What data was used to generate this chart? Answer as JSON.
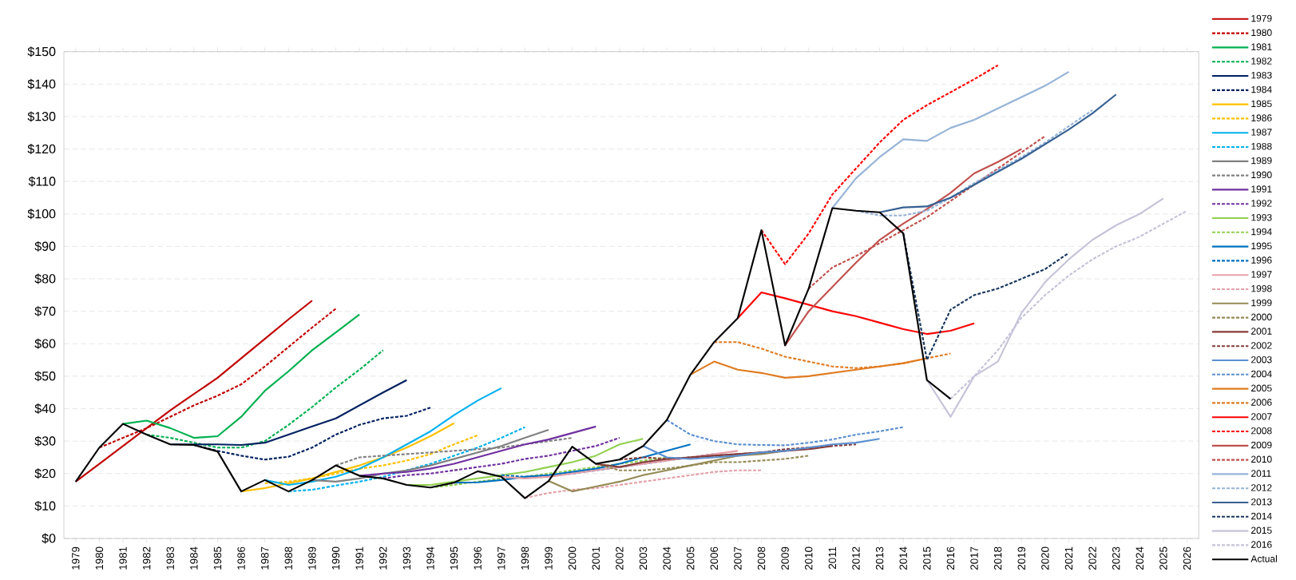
{
  "chart_data": {
    "type": "line",
    "xlim": [
      1978.5,
      2026.5
    ],
    "xticks": [
      1979,
      1980,
      1981,
      1982,
      1983,
      1984,
      1985,
      1986,
      1987,
      1988,
      1989,
      1990,
      1991,
      1992,
      1993,
      1994,
      1995,
      1996,
      1997,
      1998,
      1999,
      2000,
      2001,
      2002,
      2003,
      2004,
      2005,
      2006,
      2007,
      2008,
      2009,
      2010,
      2011,
      2012,
      2013,
      2014,
      2015,
      2016,
      2017,
      2018,
      2019,
      2020,
      2021,
      2022,
      2023,
      2024,
      2025,
      2026
    ],
    "ylim": [
      0,
      150
    ],
    "yticks": [
      {
        "value": 0,
        "label": "$0"
      },
      {
        "value": 10,
        "label": "$10"
      },
      {
        "value": 20,
        "label": "$20"
      },
      {
        "value": 30,
        "label": "$30"
      },
      {
        "value": 40,
        "label": "$40"
      },
      {
        "value": 50,
        "label": "$50"
      },
      {
        "value": 60,
        "label": "$60"
      },
      {
        "value": 70,
        "label": "$70"
      },
      {
        "value": 80,
        "label": "$80"
      },
      {
        "value": 90,
        "label": "$90"
      },
      {
        "value": 100,
        "label": "$100"
      },
      {
        "value": 110,
        "label": "$110"
      },
      {
        "value": 120,
        "label": "$120"
      },
      {
        "value": 130,
        "label": "$130"
      },
      {
        "value": 140,
        "label": "$140"
      },
      {
        "value": 150,
        "label": "$150"
      }
    ],
    "grid": "y",
    "legend": "right",
    "marker": "none",
    "series": [
      {
        "name": "1979",
        "color": "#c00000",
        "line_style": "solid",
        "x": [
          1979,
          1980,
          1981,
          1982,
          1983,
          1984,
          1985,
          1986,
          1987,
          1988,
          1989
        ],
        "values": [
          17.5,
          23,
          28.5,
          34,
          39.5,
          44.5,
          49.5,
          55.5,
          61.5,
          67.5,
          73.3
        ]
      },
      {
        "name": "1980",
        "color": "#c00000",
        "line_style": "dashed",
        "x": [
          1980,
          1981,
          1982,
          1983,
          1984,
          1985,
          1986,
          1987,
          1988,
          1989,
          1990
        ],
        "values": [
          28,
          31,
          34,
          37.5,
          41,
          44,
          47.5,
          53,
          59,
          65,
          70.8
        ]
      },
      {
        "name": "1981",
        "color": "#00b050",
        "line_style": "solid",
        "x": [
          1981,
          1982,
          1983,
          1984,
          1985,
          1986,
          1987,
          1988,
          1989,
          1990,
          1991
        ],
        "values": [
          35.3,
          36.3,
          34,
          31,
          31.5,
          37.5,
          45.5,
          51.5,
          58,
          63.5,
          69
        ]
      },
      {
        "name": "1982",
        "color": "#00b050",
        "line_style": "dashed",
        "x": [
          1982,
          1983,
          1984,
          1985,
          1986,
          1987,
          1988,
          1989,
          1990,
          1991,
          1992
        ],
        "values": [
          32,
          31,
          29.5,
          28,
          28,
          30,
          35,
          40.5,
          46.5,
          52,
          58
        ]
      },
      {
        "name": "1983",
        "color": "#002060",
        "line_style": "solid",
        "x": [
          1983,
          1984,
          1985,
          1986,
          1987,
          1988,
          1989,
          1990,
          1991,
          1992,
          1993
        ],
        "values": [
          29,
          29,
          29,
          28.8,
          29.5,
          32,
          34.5,
          37,
          41,
          45,
          48.8
        ]
      },
      {
        "name": "1984",
        "color": "#002060",
        "line_style": "dashed",
        "x": [
          1984,
          1985,
          1986,
          1987,
          1988,
          1989,
          1990,
          1991,
          1992,
          1993,
          1994
        ],
        "values": [
          28.8,
          27,
          25.5,
          24.3,
          25.2,
          28,
          32,
          35,
          37,
          37.8,
          40.3
        ]
      },
      {
        "name": "1985",
        "color": "#ffc000",
        "line_style": "solid",
        "x": [
          1986,
          1987,
          1988,
          1989,
          1990,
          1991,
          1992,
          1993,
          1994,
          1995
        ],
        "values": [
          14.5,
          15.5,
          17,
          18.5,
          20.5,
          22.5,
          25,
          28,
          31.5,
          35.5
        ]
      },
      {
        "name": "1986",
        "color": "#ffc000",
        "line_style": "dashed",
        "x": [
          1987,
          1988,
          1989,
          1990,
          1991,
          1992,
          1993,
          1994,
          1995,
          1996
        ],
        "values": [
          17,
          17.5,
          18.5,
          20,
          21.5,
          22.5,
          24,
          26,
          29,
          31.8
        ]
      },
      {
        "name": "1987",
        "color": "#00b0f0",
        "line_style": "solid",
        "x": [
          1987,
          1988,
          1989,
          1990,
          1991,
          1992,
          1993,
          1994,
          1995,
          1996,
          1997
        ],
        "values": [
          18,
          16.5,
          17.5,
          19,
          21.5,
          25,
          29,
          33,
          38,
          42.5,
          46.3
        ]
      },
      {
        "name": "1988",
        "color": "#00b0f0",
        "line_style": "dashed",
        "x": [
          1988,
          1989,
          1990,
          1991,
          1992,
          1993,
          1994,
          1995,
          1996,
          1997,
          1998
        ],
        "values": [
          14.5,
          15,
          16.3,
          17.5,
          19,
          21,
          23,
          25.5,
          28,
          31,
          34.3
        ]
      },
      {
        "name": "1989",
        "color": "#808080",
        "line_style": "solid",
        "x": [
          1989,
          1990,
          1991,
          1992,
          1993,
          1994,
          1995,
          1996,
          1997,
          1998,
          1999
        ],
        "values": [
          18,
          17.5,
          18.5,
          20,
          21,
          22.5,
          24.5,
          26.5,
          28.5,
          31,
          33.5
        ]
      },
      {
        "name": "1990",
        "color": "#808080",
        "line_style": "dashed",
        "x": [
          1990,
          1991,
          1992,
          1993,
          1994,
          1995,
          1996,
          1997,
          1998,
          1999,
          2000
        ],
        "values": [
          22.5,
          25,
          25.5,
          26,
          26.5,
          27,
          27.5,
          28,
          29,
          30,
          31
        ]
      },
      {
        "name": "1991",
        "color": "#7030a0",
        "line_style": "solid",
        "x": [
          1991,
          1992,
          1993,
          1994,
          1995,
          1996,
          1997,
          1998,
          1999,
          2000,
          2001
        ],
        "values": [
          19.3,
          20,
          20.5,
          21.5,
          23,
          25,
          27,
          29,
          30.5,
          32.5,
          34.5
        ]
      },
      {
        "name": "1992",
        "color": "#7030a0",
        "line_style": "dashed",
        "x": [
          1992,
          1993,
          1994,
          1995,
          1996,
          1997,
          1998,
          1999,
          2000,
          2001,
          2002
        ],
        "values": [
          18.5,
          19.5,
          20,
          21,
          22,
          23,
          24.5,
          25.5,
          27,
          28.5,
          31
        ]
      },
      {
        "name": "1993",
        "color": "#92d050",
        "line_style": "solid",
        "x": [
          1993,
          1994,
          1995,
          1996,
          1997,
          1998,
          1999,
          2000,
          2001,
          2002,
          2003
        ],
        "values": [
          16.5,
          16.5,
          17.5,
          18.5,
          19.5,
          20.5,
          22,
          23.5,
          25.5,
          29,
          30.7
        ]
      },
      {
        "name": "1994",
        "color": "#92d050",
        "line_style": "dashed",
        "x": [
          1994,
          1995,
          1996,
          1997,
          1998,
          1999,
          2000,
          2001,
          2002,
          2003,
          2004
        ],
        "values": [
          15.7,
          16.5,
          17.5,
          18.5,
          19,
          20,
          21,
          22,
          23,
          24,
          25
        ]
      },
      {
        "name": "1995",
        "color": "#0070c0",
        "line_style": "solid",
        "x": [
          1995,
          1996,
          1997,
          1998,
          1999,
          2000,
          2001,
          2002,
          2003,
          2004,
          2005
        ],
        "values": [
          17.2,
          17.3,
          18,
          19,
          19.5,
          20.5,
          21.5,
          23,
          25,
          27,
          29
        ]
      },
      {
        "name": "1996",
        "color": "#0070c0",
        "line_style": "dashed",
        "x": [
          1997,
          1998,
          1999,
          2000,
          2001,
          2002,
          2003,
          2004,
          2005,
          2006
        ],
        "values": [
          19.5,
          19,
          19.5,
          20,
          21,
          22,
          23,
          24,
          25,
          26
        ]
      },
      {
        "name": "1997",
        "color": "#e6a0a8",
        "line_style": "solid",
        "x": [
          1997,
          1998,
          1999,
          2000,
          2001,
          2002,
          2003,
          2004,
          2005,
          2006,
          2007
        ],
        "values": [
          19,
          18.5,
          19,
          20,
          21,
          22,
          23,
          24,
          25,
          26,
          27
        ]
      },
      {
        "name": "1998",
        "color": "#e6a0a8",
        "line_style": "dashed",
        "x": [
          1998,
          1999,
          2000,
          2001,
          2002,
          2003,
          2004,
          2005,
          2006,
          2007,
          2008
        ],
        "values": [
          12.5,
          14,
          15,
          15.5,
          16.5,
          17.5,
          18.5,
          19.5,
          20.5,
          21,
          21
        ]
      },
      {
        "name": "1999",
        "color": "#948a54",
        "line_style": "solid",
        "x": [
          1999,
          2000,
          2001,
          2002,
          2003,
          2004,
          2005,
          2006,
          2007,
          2008,
          2009
        ],
        "values": [
          17.7,
          14.5,
          16,
          17.5,
          19.5,
          21,
          22.5,
          24,
          25.5,
          26,
          27
        ]
      },
      {
        "name": "2000",
        "color": "#948a54",
        "line_style": "dashed",
        "x": [
          2001,
          2002,
          2003,
          2004,
          2005,
          2006,
          2007,
          2008,
          2009,
          2010
        ],
        "values": [
          23,
          21,
          21,
          21.5,
          22.5,
          23.5,
          23.5,
          24,
          24.5,
          25.5
        ]
      },
      {
        "name": "2001",
        "color": "#843c39",
        "line_style": "solid",
        "x": [
          2001,
          2002,
          2003,
          2004,
          2005,
          2006,
          2007,
          2008,
          2009,
          2010,
          2011
        ],
        "values": [
          23,
          22,
          23.5,
          24.5,
          25,
          25.5,
          26,
          26.5,
          27,
          27.5,
          28.5
        ]
      },
      {
        "name": "2002",
        "color": "#843c39",
        "line_style": "dashed",
        "x": [
          2002,
          2003,
          2004,
          2005,
          2006,
          2007,
          2008,
          2009,
          2010,
          2011,
          2012
        ],
        "values": [
          24.3,
          25,
          24.5,
          25,
          25.5,
          26,
          26.5,
          27.5,
          28,
          28.5,
          29
        ]
      },
      {
        "name": "2003",
        "color": "#5b8fd0",
        "line_style": "solid",
        "x": [
          2003,
          2004,
          2005,
          2006,
          2007,
          2008,
          2009,
          2010,
          2011,
          2012,
          2013
        ],
        "values": [
          28.5,
          25,
          24.5,
          25,
          25.5,
          26.5,
          27,
          28,
          29,
          29.5,
          30.7
        ]
      },
      {
        "name": "2004",
        "color": "#5b8fd0",
        "line_style": "dashed",
        "x": [
          2004,
          2005,
          2006,
          2007,
          2008,
          2009,
          2010,
          2011,
          2012,
          2013,
          2014
        ],
        "values": [
          36.5,
          32,
          30,
          29,
          28.8,
          28.7,
          29.5,
          30.5,
          32,
          33,
          34.3
        ]
      },
      {
        "name": "2005",
        "color": "#e07b20",
        "line_style": "solid",
        "x": [
          2005,
          2006,
          2007,
          2008,
          2009,
          2010,
          2011,
          2012,
          2013,
          2014,
          2015
        ],
        "values": [
          50.5,
          54.5,
          52,
          51,
          49.5,
          50,
          51,
          52,
          53,
          54,
          55.5
        ]
      },
      {
        "name": "2006",
        "color": "#e07b20",
        "line_style": "dashed",
        "x": [
          2006,
          2007,
          2008,
          2009,
          2010,
          2011,
          2012,
          2013,
          2014,
          2015,
          2016
        ],
        "values": [
          60.5,
          60.5,
          58.5,
          56,
          54.5,
          53,
          52.5,
          53,
          54,
          55.5,
          57
        ]
      },
      {
        "name": "2007",
        "color": "#ff0000",
        "line_style": "solid",
        "x": [
          2007,
          2008,
          2009,
          2010,
          2011,
          2012,
          2013,
          2014,
          2015,
          2016,
          2017
        ],
        "values": [
          67.9,
          75.8,
          74,
          72,
          70,
          68.5,
          66.5,
          64.5,
          63,
          64,
          66.3
        ]
      },
      {
        "name": "2008",
        "color": "#ff0000",
        "line_style": "dashed",
        "x": [
          2008,
          2009,
          2010,
          2011,
          2012,
          2013,
          2014,
          2015,
          2016,
          2017,
          2018
        ],
        "values": [
          95,
          84.5,
          94,
          106,
          114,
          122,
          129,
          133.5,
          137.5,
          141.5,
          145.8
        ]
      },
      {
        "name": "2009",
        "color": "#c0504d",
        "line_style": "solid",
        "x": [
          2009,
          2010,
          2011,
          2012,
          2013,
          2014,
          2015,
          2016,
          2017,
          2018,
          2019
        ],
        "values": [
          59.5,
          70,
          77.5,
          85,
          92,
          97,
          101.5,
          106.5,
          112.5,
          116,
          120
        ]
      },
      {
        "name": "2010",
        "color": "#c0504d",
        "line_style": "dashed",
        "x": [
          2010,
          2011,
          2012,
          2013,
          2014,
          2015,
          2016,
          2017,
          2018,
          2019,
          2020
        ],
        "values": [
          77,
          83.5,
          87,
          91,
          95,
          99,
          104,
          109,
          114,
          119,
          124
        ]
      },
      {
        "name": "2011",
        "color": "#95b3d7",
        "line_style": "solid",
        "x": [
          2011,
          2012,
          2013,
          2014,
          2015,
          2016,
          2017,
          2018,
          2019,
          2020,
          2021
        ],
        "values": [
          101.8,
          111,
          117.5,
          123,
          122.5,
          126.5,
          129,
          132.5,
          136,
          139.5,
          143.8
        ]
      },
      {
        "name": "2012",
        "color": "#95b3d7",
        "line_style": "dashed",
        "x": [
          2012,
          2013,
          2014,
          2015,
          2016,
          2017,
          2018,
          2019,
          2020,
          2021,
          2022
        ],
        "values": [
          101,
          99.5,
          99.5,
          101,
          105,
          109.5,
          113.5,
          117.5,
          122,
          127,
          132
        ]
      },
      {
        "name": "2013",
        "color": "#366092",
        "line_style": "solid",
        "x": [
          2013,
          2014,
          2015,
          2016,
          2017,
          2018,
          2019,
          2020,
          2021,
          2022,
          2023
        ],
        "values": [
          100.5,
          102,
          102.3,
          105,
          109,
          113,
          117,
          121.5,
          126,
          131,
          136.8
        ]
      },
      {
        "name": "2014",
        "color": "#17375e",
        "line_style": "dashed",
        "x": [
          2014,
          2015,
          2016,
          2017,
          2018,
          2019,
          2020,
          2021
        ],
        "values": [
          94,
          55,
          70.5,
          75,
          77,
          80,
          83,
          88
        ]
      },
      {
        "name": "2015",
        "color": "#c5c3d8",
        "line_style": "solid",
        "x": [
          2015,
          2016,
          2017,
          2018,
          2019,
          2020,
          2021,
          2022,
          2023,
          2024,
          2025
        ],
        "values": [
          48.8,
          37.5,
          50,
          54.5,
          69.5,
          79,
          86,
          92,
          96.5,
          100,
          104.8
        ]
      },
      {
        "name": "2016",
        "color": "#c5c3d8",
        "line_style": "dashed",
        "x": [
          2016,
          2017,
          2018,
          2019,
          2020,
          2021,
          2022,
          2023,
          2024,
          2025,
          2026
        ],
        "values": [
          43,
          50,
          58,
          68,
          75,
          81,
          86,
          90,
          93,
          97,
          101
        ]
      },
      {
        "name": "Actual",
        "color": "#000000",
        "line_style": "solid",
        "x": [
          1979,
          1980,
          1981,
          1982,
          1983,
          1984,
          1985,
          1986,
          1987,
          1988,
          1989,
          1990,
          1991,
          1992,
          1993,
          1994,
          1995,
          1996,
          1997,
          1998,
          1999,
          2000,
          2001,
          2002,
          2003,
          2004,
          2005,
          2006,
          2007,
          2008,
          2009,
          2010,
          2011,
          2012,
          2013,
          2014,
          2015,
          2016
        ],
        "values": [
          17.5,
          28,
          35.3,
          32,
          29,
          28.8,
          26.8,
          14.5,
          18,
          14.5,
          18,
          22.5,
          19.3,
          18.5,
          16.5,
          15.7,
          17.2,
          20.7,
          19,
          12.4,
          17.7,
          28.3,
          23,
          24.3,
          28.5,
          36.5,
          50.5,
          60.5,
          67.9,
          95,
          59.5,
          77,
          101.8,
          101,
          100.5,
          94,
          48.8,
          43
        ]
      }
    ]
  }
}
